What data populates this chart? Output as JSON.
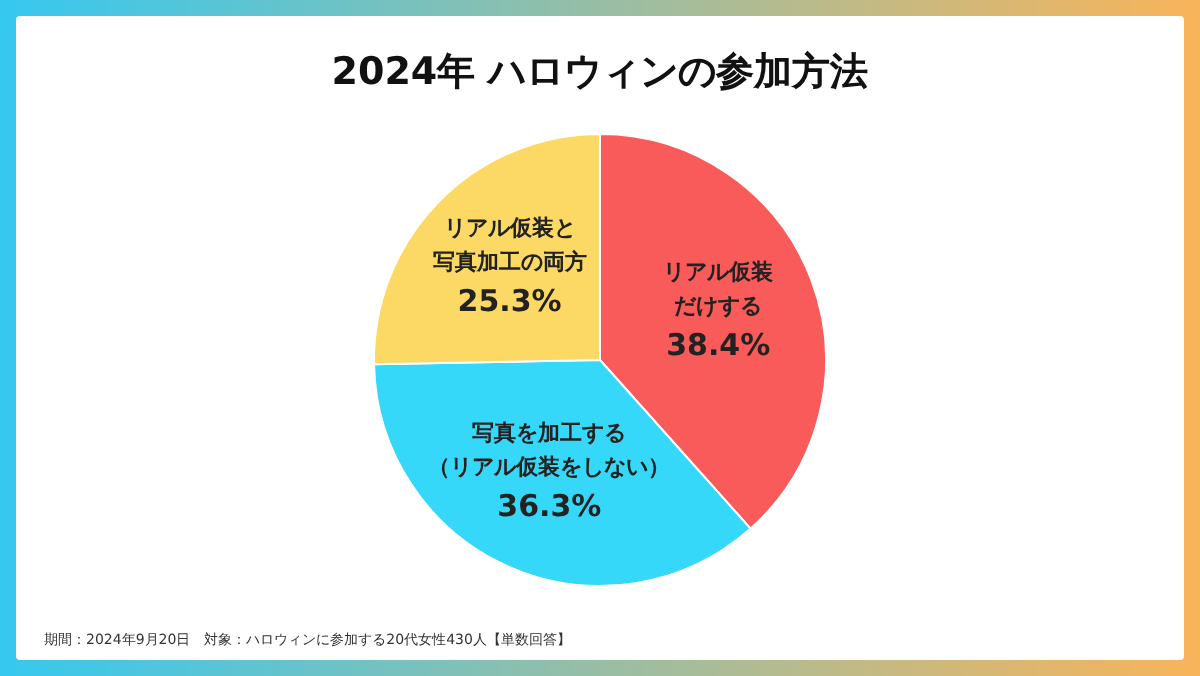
{
  "chart_data": {
    "type": "pie",
    "title": "2024年 ハロウィンの参加方法",
    "categories": [
      "リアル仮装だけする",
      "写真を加工する（リアル仮装をしない）",
      "リアル仮装と写真加工の両方"
    ],
    "values": [
      38.4,
      36.3,
      25.3
    ],
    "colors": [
      "#f95a5a",
      "#35d8f8",
      "#fcd964"
    ],
    "value_labels": [
      "38.4%",
      "36.3%",
      "25.3%"
    ],
    "annotations": [
      "期間：2024年9月20日　対象：ハロウィンに参加する20代女性430人【単数回答】"
    ]
  }
}
